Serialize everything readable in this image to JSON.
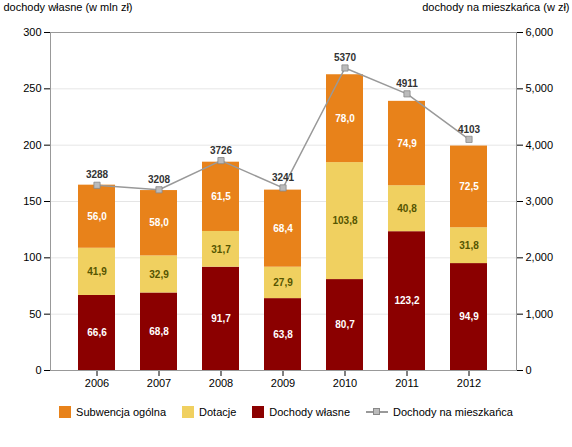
{
  "chart_data": {
    "type": "bar",
    "stacked": true,
    "categories": [
      "2006",
      "2007",
      "2008",
      "2009",
      "2010",
      "2011",
      "2012"
    ],
    "ylabel": "dochody własne (w mln zł)",
    "y2label": "dochody na mieszkańca (w zł)",
    "ylim": [
      0,
      300
    ],
    "yticks": [
      0,
      50,
      100,
      150,
      200,
      250,
      300
    ],
    "y2lim": [
      0,
      6000
    ],
    "y2ticks": [
      0,
      1000,
      2000,
      3000,
      4000,
      5000,
      6000
    ],
    "grid": true,
    "legend": "bottom",
    "data_labels": true,
    "series": [
      {
        "name": "Subwencja ogólna",
        "color": "#E8821A",
        "values": [
          56.0,
          58.0,
          61.5,
          68.4,
          78.0,
          74.9,
          72.5
        ],
        "value_labels": [
          "56,0",
          "58,0",
          "61,5",
          "68,4",
          "78,0",
          "74,9",
          "72,5"
        ]
      },
      {
        "name": "Dotacje",
        "color": "#F0D060",
        "values": [
          41.9,
          32.9,
          31.7,
          27.9,
          103.8,
          40.8,
          31.8
        ],
        "value_labels": [
          "41,9",
          "32,9",
          "31,7",
          "27,9",
          "103,8",
          "40,8",
          "31,8"
        ]
      },
      {
        "name": "Dochody własne",
        "color": "#8B0000",
        "values": [
          66.6,
          68.8,
          91.7,
          63.8,
          80.7,
          123.2,
          94.9
        ],
        "value_labels": [
          "66,6",
          "68,8",
          "91,7",
          "63,8",
          "80,7",
          "123,2",
          "94,9"
        ]
      },
      {
        "name": "Dochody na mieszkańca",
        "type": "line",
        "axis": "y2",
        "color": "#999999",
        "marker": "square",
        "values": [
          3288,
          3208,
          3726,
          3241,
          5370,
          4911,
          4103
        ]
      }
    ]
  }
}
